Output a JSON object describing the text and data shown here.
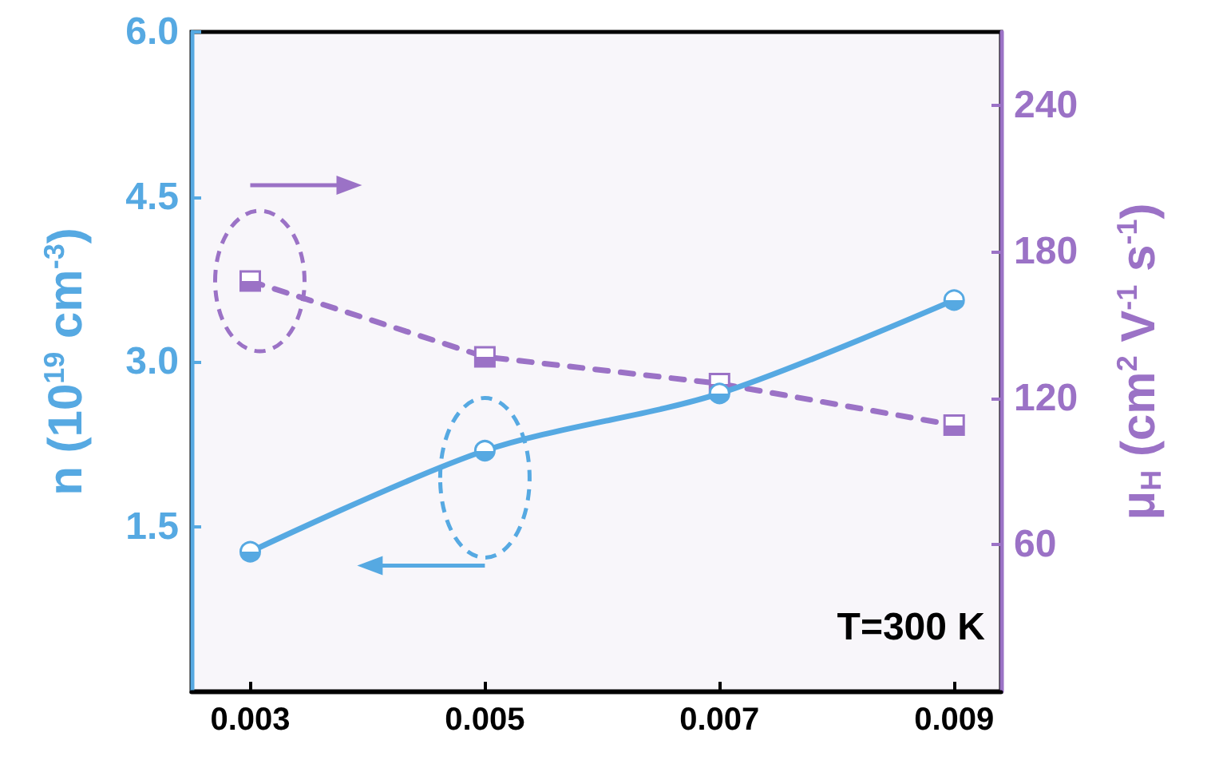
{
  "chart_data": {
    "type": "line",
    "xlabel": null,
    "ylabel": "n (10$^{19}$ cm$^{-3}$)",
    "y2label": "μ$_{H}$ (cm$^{2}$ V$^{-1}$ s$^{-1}$)",
    "x": [
      0.003,
      0.005,
      0.007,
      0.009
    ],
    "series": [
      {
        "color": "#56a9e2",
        "values": [
          1.27,
          2.19,
          2.71,
          3.56
        ],
        "marker": "circle",
        "line_style": "solid"
      },
      {
        "color": "#9b72c6",
        "values": [
          168,
          137,
          126,
          109
        ],
        "marker": "square",
        "line_style": "dashed",
        "axis": "y2"
      }
    ],
    "xlim": [
      0.0025,
      0.0094
    ],
    "xticks": [
      0.003,
      0.005,
      0.007,
      0.009
    ],
    "ylim": [
      0,
      6
    ],
    "yticks": [
      {
        "value": 1.5,
        "label": "1.5"
      },
      {
        "value": 3,
        "label": "3.0"
      },
      {
        "value": 4.5,
        "label": "4.5"
      },
      {
        "value": 6,
        "label": "6.0"
      }
    ],
    "y2lim": [
      0,
      270
    ],
    "y2ticks": [
      60,
      120,
      180,
      240
    ],
    "annotations": [
      "T=300 K"
    ]
  }
}
